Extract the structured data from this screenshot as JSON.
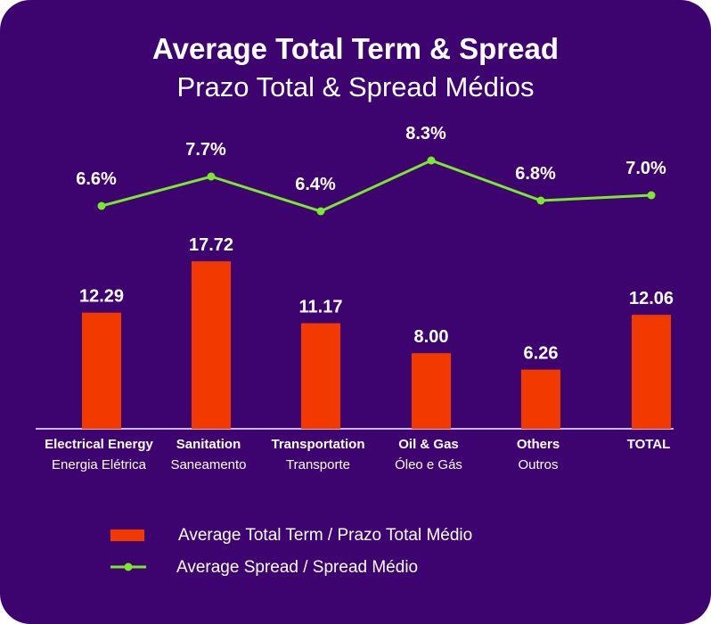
{
  "chart_data": {
    "type": "bar+line",
    "title": "Average Total Term & Spread",
    "subtitle": "Prazo Total & Spread Médios",
    "categories": [
      {
        "en": "Electrical Energy",
        "pt": "Energia Elétrica"
      },
      {
        "en": "Sanitation",
        "pt": "Saneamento"
      },
      {
        "en": "Transportation",
        "pt": "Transporte"
      },
      {
        "en": "Oil & Gas",
        "pt": "Óleo e Gás"
      },
      {
        "en": "Others",
        "pt": "Outros"
      },
      {
        "en": "TOTAL",
        "pt": ""
      }
    ],
    "series": [
      {
        "name": "Average Total Term / Prazo Total Médio",
        "type": "bar",
        "values": [
          12.29,
          17.72,
          11.17,
          8.0,
          6.26,
          12.06
        ],
        "labels": [
          "12.29",
          "17.72",
          "11.17",
          "8.00",
          "6.26",
          "12.06"
        ],
        "color": "#f23a00"
      },
      {
        "name": "Average Spread / Spread Médio",
        "type": "line",
        "values": [
          6.6,
          7.7,
          6.4,
          8.3,
          6.8,
          7.0
        ],
        "labels": [
          "6.6%",
          "7.7%",
          "6.4%",
          "8.3%",
          "6.8%",
          "7.0%"
        ],
        "color": "#7be82e"
      }
    ],
    "grid": false,
    "legend": "bottom",
    "background": "#3d0470"
  }
}
